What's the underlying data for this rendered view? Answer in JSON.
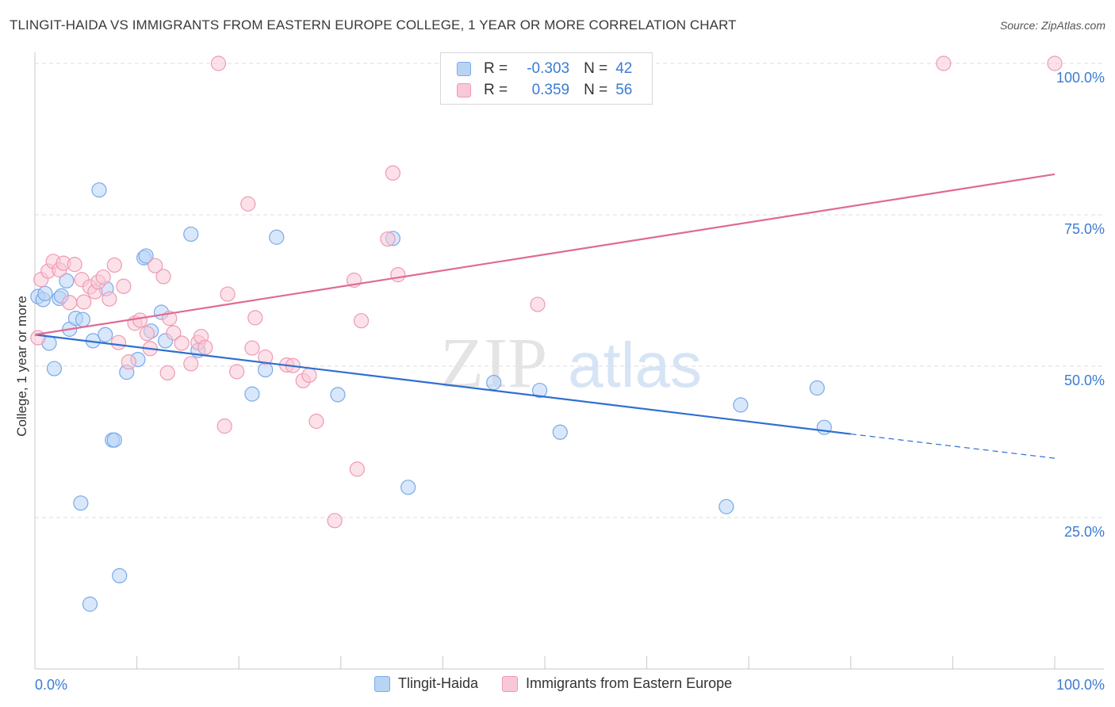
{
  "title": "TLINGIT-HAIDA VS IMMIGRANTS FROM EASTERN EUROPE COLLEGE, 1 YEAR OR MORE CORRELATION CHART",
  "source": "Source: ZipAtlas.com",
  "watermark": {
    "zip": "ZIP",
    "atlas": "atlas"
  },
  "legend": {
    "rows": [
      {
        "r_label": "R =",
        "r_value": "-0.303",
        "n_label": "N =",
        "n_value": "42",
        "fill": "#b8d4f5",
        "stroke": "#7aaae8"
      },
      {
        "r_label": "R =",
        "r_value": "0.359",
        "n_label": "N =",
        "n_value": "56",
        "fill": "#f9c8d6",
        "stroke": "#ee9ab4"
      }
    ]
  },
  "bottom_legend": [
    "Tlingit-Haida",
    "Immigrants from Eastern Europe"
  ],
  "chart_data": {
    "type": "scatter",
    "title": "TLINGIT-HAIDA VS IMMIGRANTS FROM EASTERN EUROPE COLLEGE, 1 YEAR OR MORE CORRELATION CHART",
    "xlabel": "",
    "ylabel": "College, 1 year or more",
    "xlim": [
      0,
      100
    ],
    "ylim": [
      0,
      100
    ],
    "x_tick_labels": [
      "0.0%",
      "100.0%"
    ],
    "y_tick_labels": [
      {
        "value": 25,
        "label": "25.0%"
      },
      {
        "value": 50,
        "label": "50.0%"
      },
      {
        "value": 75,
        "label": "75.0%"
      },
      {
        "value": 100,
        "label": "100.0%"
      }
    ],
    "grid": true,
    "series": [
      {
        "name": "Tlingit-Haida",
        "color": "#7aaae8",
        "fill": "#b8d4f5",
        "line_color": "#2f6fd0",
        "trend": {
          "x0": 0,
          "y0": 55.2,
          "x1": 80,
          "y1": 38.8,
          "dash_to_x": 100,
          "dash_to_y": 34.8
        },
        "points": [
          [
            0.3,
            61.5
          ],
          [
            0.8,
            61.0
          ],
          [
            1.0,
            62.0
          ],
          [
            1.4,
            53.8
          ],
          [
            1.9,
            49.6
          ],
          [
            2.4,
            61.2
          ],
          [
            2.6,
            61.6
          ],
          [
            3.1,
            64.1
          ],
          [
            3.4,
            56.1
          ],
          [
            4.0,
            57.9
          ],
          [
            4.5,
            27.4
          ],
          [
            4.7,
            57.7
          ],
          [
            5.4,
            10.7
          ],
          [
            5.7,
            54.2
          ],
          [
            6.3,
            79.1
          ],
          [
            6.9,
            55.2
          ],
          [
            7.0,
            62.8
          ],
          [
            7.6,
            37.8
          ],
          [
            7.8,
            37.8
          ],
          [
            8.3,
            15.4
          ],
          [
            9.0,
            49.0
          ],
          [
            10.1,
            51.1
          ],
          [
            10.7,
            67.9
          ],
          [
            10.9,
            68.2
          ],
          [
            11.4,
            55.8
          ],
          [
            12.4,
            58.9
          ],
          [
            12.8,
            54.2
          ],
          [
            15.3,
            71.8
          ],
          [
            16.0,
            52.6
          ],
          [
            21.3,
            45.4
          ],
          [
            22.6,
            49.4
          ],
          [
            23.7,
            71.3
          ],
          [
            29.7,
            45.3
          ],
          [
            35.1,
            71.1
          ],
          [
            36.6,
            30.0
          ],
          [
            45.0,
            47.3
          ],
          [
            49.5,
            46.0
          ],
          [
            51.5,
            39.1
          ],
          [
            67.8,
            26.8
          ],
          [
            69.2,
            43.6
          ],
          [
            76.7,
            46.4
          ],
          [
            77.4,
            39.9
          ]
        ]
      },
      {
        "name": "Immigrants from Eastern Europe",
        "color": "#ee9ab4",
        "fill": "#f9c8d6",
        "line_color": "#e06a93",
        "trend": {
          "x0": 0,
          "y0": 55.2,
          "x1": 100,
          "y1": 81.7
        },
        "points": [
          [
            0.3,
            54.7
          ],
          [
            0.6,
            64.3
          ],
          [
            1.3,
            65.7
          ],
          [
            1.8,
            67.3
          ],
          [
            2.4,
            65.9
          ],
          [
            2.8,
            67.0
          ],
          [
            3.4,
            60.5
          ],
          [
            3.9,
            66.8
          ],
          [
            4.6,
            64.3
          ],
          [
            4.8,
            60.6
          ],
          [
            5.4,
            63.1
          ],
          [
            5.9,
            62.3
          ],
          [
            6.2,
            63.9
          ],
          [
            6.7,
            64.7
          ],
          [
            7.3,
            61.1
          ],
          [
            7.8,
            66.7
          ],
          [
            8.2,
            53.9
          ],
          [
            8.7,
            63.2
          ],
          [
            9.2,
            50.7
          ],
          [
            9.8,
            57.1
          ],
          [
            10.3,
            57.6
          ],
          [
            11.0,
            55.4
          ],
          [
            11.3,
            52.9
          ],
          [
            11.8,
            66.6
          ],
          [
            12.6,
            64.8
          ],
          [
            13.0,
            48.9
          ],
          [
            13.2,
            57.9
          ],
          [
            13.6,
            55.5
          ],
          [
            14.4,
            53.8
          ],
          [
            15.3,
            50.4
          ],
          [
            16.0,
            53.9
          ],
          [
            16.3,
            54.9
          ],
          [
            16.7,
            53.1
          ],
          [
            18.0,
            100.0
          ],
          [
            18.6,
            40.1
          ],
          [
            18.9,
            61.9
          ],
          [
            19.8,
            49.1
          ],
          [
            20.9,
            76.8
          ],
          [
            21.3,
            53.0
          ],
          [
            21.6,
            58.0
          ],
          [
            22.6,
            51.5
          ],
          [
            24.7,
            50.2
          ],
          [
            25.3,
            50.1
          ],
          [
            26.3,
            47.6
          ],
          [
            26.9,
            48.5
          ],
          [
            27.6,
            40.9
          ],
          [
            29.4,
            24.5
          ],
          [
            31.3,
            64.2
          ],
          [
            31.6,
            33.0
          ],
          [
            32.0,
            57.5
          ],
          [
            34.6,
            71.0
          ],
          [
            35.1,
            81.9
          ],
          [
            35.6,
            65.1
          ],
          [
            49.3,
            60.2
          ],
          [
            89.1,
            100.0
          ],
          [
            100.0,
            100.0
          ]
        ]
      }
    ]
  }
}
